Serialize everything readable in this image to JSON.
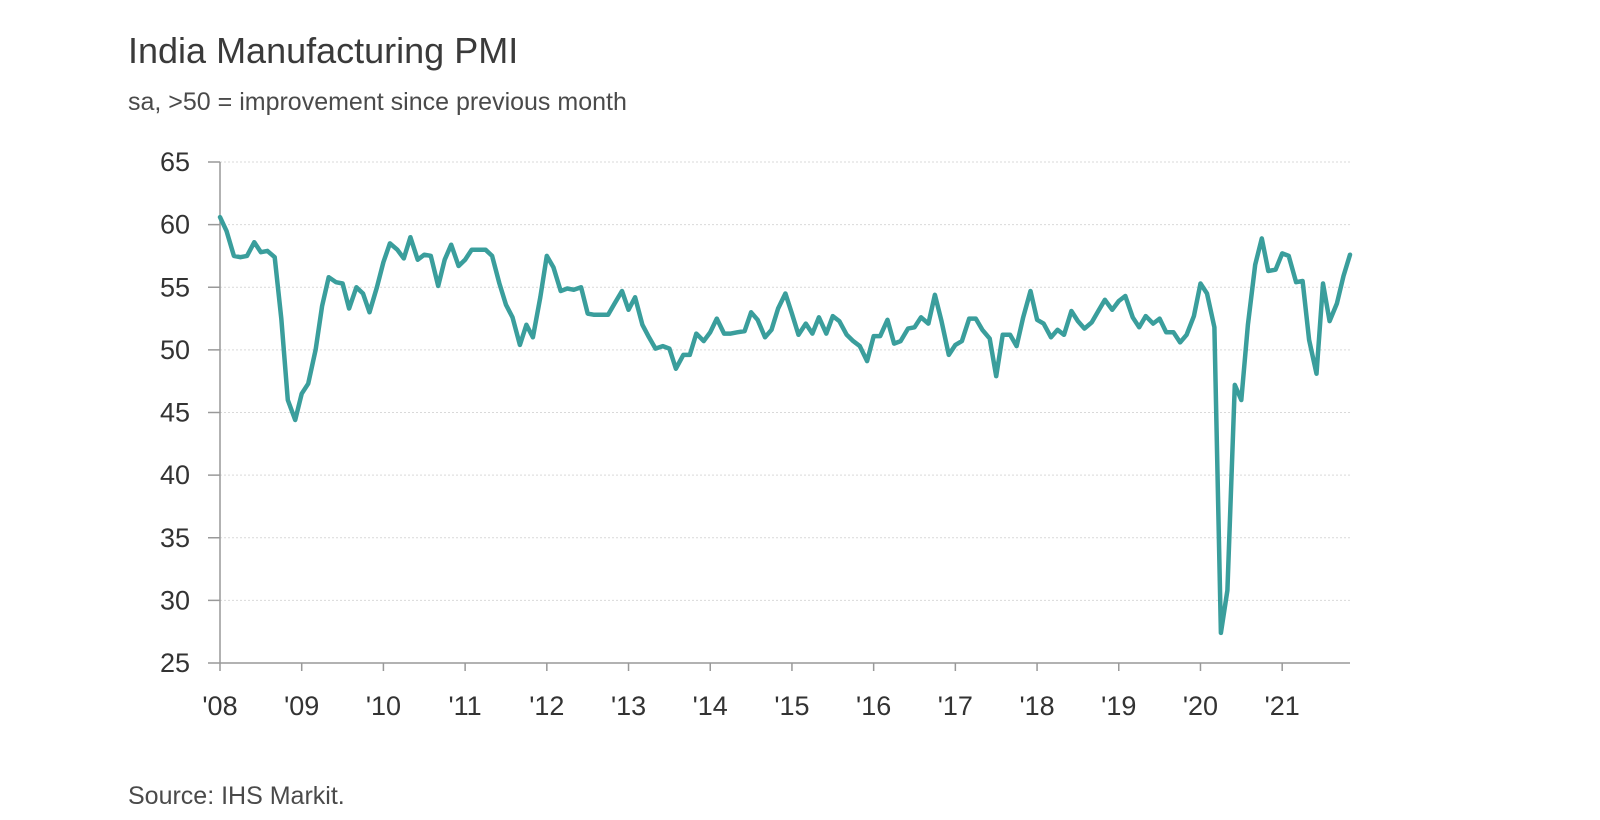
{
  "title": "India Manufacturing PMI",
  "subtitle": "sa, >50 = improvement since previous month",
  "source": "Source: IHS Markit.",
  "colors": {
    "line": "#3a9e9c",
    "grid": "#d9d9d9",
    "axis": "#999999",
    "text": "#333333"
  },
  "chart_data": {
    "type": "line",
    "title": "India Manufacturing PMI",
    "subtitle": "sa, >50 = improvement since previous month",
    "xlabel": "",
    "ylabel": "",
    "ylim": [
      25,
      65
    ],
    "xlim": [
      2008.0,
      2021.83
    ],
    "y_ticks": [
      25,
      30,
      35,
      40,
      45,
      50,
      55,
      60,
      65
    ],
    "x_ticks": [
      2008,
      2009,
      2010,
      2011,
      2012,
      2013,
      2014,
      2015,
      2016,
      2017,
      2018,
      2019,
      2020,
      2021
    ],
    "x_tick_labels": [
      "'08",
      "'09",
      "'10",
      "'11",
      "'12",
      "'13",
      "'14",
      "'15",
      "'16",
      "'17",
      "'18",
      "'19",
      "'20",
      "'21"
    ],
    "grid": true,
    "series": [
      {
        "values": [
          [
            2008.0,
            60.6
          ],
          [
            2008.08,
            59.5
          ],
          [
            2008.17,
            57.5
          ],
          [
            2008.25,
            57.4
          ],
          [
            2008.33,
            57.5
          ],
          [
            2008.42,
            58.6
          ],
          [
            2008.5,
            57.8
          ],
          [
            2008.58,
            57.9
          ],
          [
            2008.67,
            57.4
          ],
          [
            2008.75,
            52.5
          ],
          [
            2008.83,
            46.0
          ],
          [
            2008.92,
            44.4
          ],
          [
            2009.0,
            46.5
          ],
          [
            2009.08,
            47.3
          ],
          [
            2009.17,
            50.0
          ],
          [
            2009.25,
            53.5
          ],
          [
            2009.33,
            55.8
          ],
          [
            2009.42,
            55.4
          ],
          [
            2009.5,
            55.3
          ],
          [
            2009.58,
            53.3
          ],
          [
            2009.67,
            55.0
          ],
          [
            2009.75,
            54.5
          ],
          [
            2009.83,
            53.0
          ],
          [
            2009.92,
            55.0
          ],
          [
            2010.0,
            57.0
          ],
          [
            2010.08,
            58.5
          ],
          [
            2010.17,
            58.0
          ],
          [
            2010.25,
            57.3
          ],
          [
            2010.33,
            59.0
          ],
          [
            2010.42,
            57.2
          ],
          [
            2010.5,
            57.6
          ],
          [
            2010.58,
            57.5
          ],
          [
            2010.67,
            55.1
          ],
          [
            2010.75,
            57.2
          ],
          [
            2010.83,
            58.4
          ],
          [
            2010.92,
            56.7
          ],
          [
            2011.0,
            57.2
          ],
          [
            2011.08,
            58.0
          ],
          [
            2011.17,
            58.0
          ],
          [
            2011.25,
            58.0
          ],
          [
            2011.33,
            57.5
          ],
          [
            2011.42,
            55.3
          ],
          [
            2011.5,
            53.6
          ],
          [
            2011.58,
            52.6
          ],
          [
            2011.67,
            50.4
          ],
          [
            2011.75,
            52.0
          ],
          [
            2011.83,
            51.0
          ],
          [
            2011.92,
            54.2
          ],
          [
            2012.0,
            57.5
          ],
          [
            2012.08,
            56.6
          ],
          [
            2012.17,
            54.7
          ],
          [
            2012.25,
            54.9
          ],
          [
            2012.33,
            54.8
          ],
          [
            2012.42,
            55.0
          ],
          [
            2012.5,
            52.9
          ],
          [
            2012.58,
            52.8
          ],
          [
            2012.67,
            52.8
          ],
          [
            2012.75,
            52.8
          ],
          [
            2012.83,
            53.7
          ],
          [
            2012.92,
            54.7
          ],
          [
            2013.0,
            53.2
          ],
          [
            2013.08,
            54.2
          ],
          [
            2013.17,
            52.0
          ],
          [
            2013.25,
            51.0
          ],
          [
            2013.33,
            50.1
          ],
          [
            2013.42,
            50.3
          ],
          [
            2013.5,
            50.1
          ],
          [
            2013.58,
            48.5
          ],
          [
            2013.67,
            49.6
          ],
          [
            2013.75,
            49.6
          ],
          [
            2013.83,
            51.3
          ],
          [
            2013.92,
            50.7
          ],
          [
            2014.0,
            51.4
          ],
          [
            2014.08,
            52.5
          ],
          [
            2014.17,
            51.3
          ],
          [
            2014.25,
            51.3
          ],
          [
            2014.33,
            51.4
          ],
          [
            2014.42,
            51.5
          ],
          [
            2014.5,
            53.0
          ],
          [
            2014.58,
            52.4
          ],
          [
            2014.67,
            51.0
          ],
          [
            2014.75,
            51.6
          ],
          [
            2014.83,
            53.3
          ],
          [
            2014.92,
            54.5
          ],
          [
            2015.0,
            52.9
          ],
          [
            2015.08,
            51.2
          ],
          [
            2015.17,
            52.1
          ],
          [
            2015.25,
            51.3
          ],
          [
            2015.33,
            52.6
          ],
          [
            2015.42,
            51.3
          ],
          [
            2015.5,
            52.7
          ],
          [
            2015.58,
            52.3
          ],
          [
            2015.67,
            51.2
          ],
          [
            2015.75,
            50.7
          ],
          [
            2015.83,
            50.3
          ],
          [
            2015.92,
            49.1
          ],
          [
            2016.0,
            51.1
          ],
          [
            2016.08,
            51.1
          ],
          [
            2016.17,
            52.4
          ],
          [
            2016.25,
            50.5
          ],
          [
            2016.33,
            50.7
          ],
          [
            2016.42,
            51.7
          ],
          [
            2016.5,
            51.8
          ],
          [
            2016.58,
            52.6
          ],
          [
            2016.67,
            52.1
          ],
          [
            2016.75,
            54.4
          ],
          [
            2016.83,
            52.3
          ],
          [
            2016.92,
            49.6
          ],
          [
            2017.0,
            50.4
          ],
          [
            2017.08,
            50.7
          ],
          [
            2017.17,
            52.5
          ],
          [
            2017.25,
            52.5
          ],
          [
            2017.33,
            51.6
          ],
          [
            2017.42,
            50.9
          ],
          [
            2017.5,
            47.9
          ],
          [
            2017.58,
            51.2
          ],
          [
            2017.67,
            51.2
          ],
          [
            2017.75,
            50.3
          ],
          [
            2017.83,
            52.6
          ],
          [
            2017.92,
            54.7
          ],
          [
            2018.0,
            52.4
          ],
          [
            2018.08,
            52.1
          ],
          [
            2018.17,
            51.0
          ],
          [
            2018.25,
            51.6
          ],
          [
            2018.33,
            51.2
          ],
          [
            2018.42,
            53.1
          ],
          [
            2018.5,
            52.3
          ],
          [
            2018.58,
            51.7
          ],
          [
            2018.67,
            52.2
          ],
          [
            2018.75,
            53.1
          ],
          [
            2018.83,
            54.0
          ],
          [
            2018.92,
            53.2
          ],
          [
            2019.0,
            53.9
          ],
          [
            2019.08,
            54.3
          ],
          [
            2019.17,
            52.6
          ],
          [
            2019.25,
            51.8
          ],
          [
            2019.33,
            52.7
          ],
          [
            2019.42,
            52.1
          ],
          [
            2019.5,
            52.5
          ],
          [
            2019.58,
            51.4
          ],
          [
            2019.67,
            51.4
          ],
          [
            2019.75,
            50.6
          ],
          [
            2019.83,
            51.2
          ],
          [
            2019.92,
            52.7
          ],
          [
            2020.0,
            55.3
          ],
          [
            2020.08,
            54.5
          ],
          [
            2020.17,
            51.8
          ],
          [
            2020.25,
            27.4
          ],
          [
            2020.33,
            30.8
          ],
          [
            2020.42,
            47.2
          ],
          [
            2020.5,
            46.0
          ],
          [
            2020.58,
            52.0
          ],
          [
            2020.67,
            56.8
          ],
          [
            2020.75,
            58.9
          ],
          [
            2020.83,
            56.3
          ],
          [
            2020.92,
            56.4
          ],
          [
            2021.0,
            57.7
          ],
          [
            2021.08,
            57.5
          ],
          [
            2021.17,
            55.4
          ],
          [
            2021.25,
            55.5
          ],
          [
            2021.33,
            50.8
          ],
          [
            2021.42,
            48.1
          ],
          [
            2021.5,
            55.3
          ],
          [
            2021.58,
            52.3
          ],
          [
            2021.67,
            53.7
          ],
          [
            2021.75,
            55.9
          ],
          [
            2021.83,
            57.6
          ]
        ]
      }
    ]
  }
}
